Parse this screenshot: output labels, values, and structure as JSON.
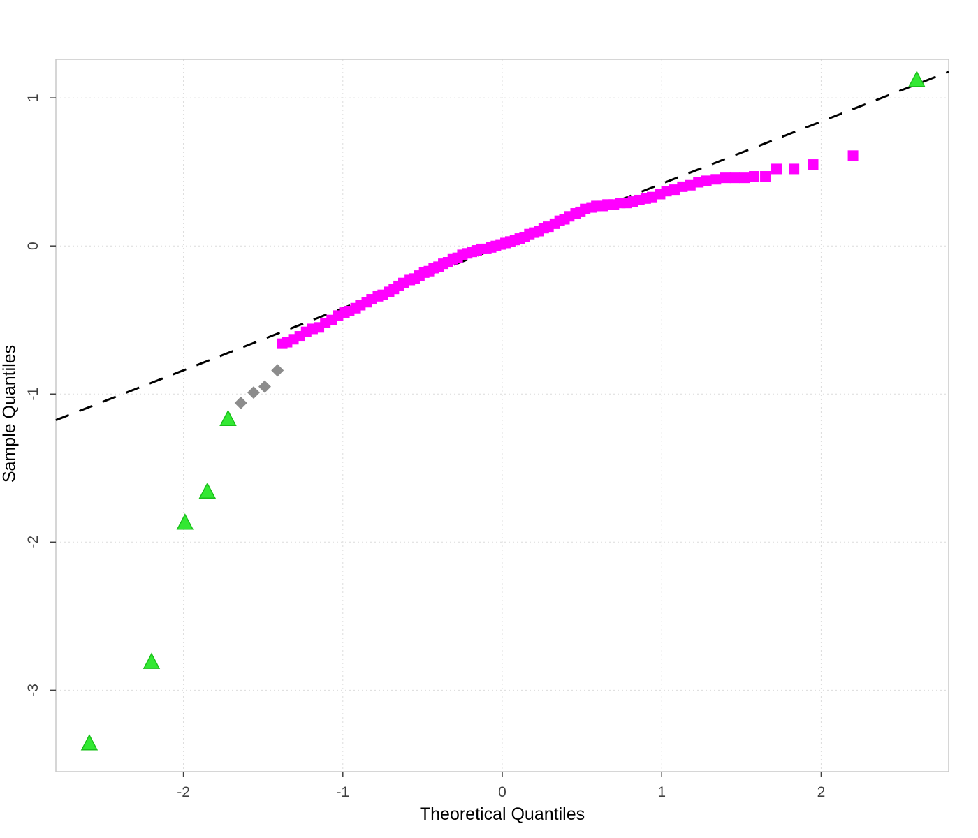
{
  "chart_data": {
    "type": "scatter",
    "title": "",
    "xlabel": "Theoretical Quantiles",
    "ylabel": "Sample Quantiles",
    "xlim": [
      -2.8,
      2.8
    ],
    "ylim": [
      -3.55,
      1.26
    ],
    "x_ticks": [
      -2,
      -1,
      0,
      1,
      2
    ],
    "y_ticks": [
      1,
      0,
      -1,
      -2,
      -3
    ],
    "grid": true,
    "grid_color": "#dcdcdc",
    "box_color": "#c8c8c8",
    "tick_label_color": "#404040",
    "reference_line": {
      "style": "dashed",
      "color": "#000000",
      "slope": 0.42,
      "intercept": 0.0
    },
    "series": [
      {
        "name": "main-sample",
        "marker": "square",
        "color": "#ff00ff",
        "points": [
          [
            -1.38,
            -0.66
          ],
          [
            -1.35,
            -0.65
          ],
          [
            -1.31,
            -0.63
          ],
          [
            -1.27,
            -0.61
          ],
          [
            -1.23,
            -0.58
          ],
          [
            -1.19,
            -0.56
          ],
          [
            -1.15,
            -0.55
          ],
          [
            -1.11,
            -0.52
          ],
          [
            -1.07,
            -0.5
          ],
          [
            -1.03,
            -0.47
          ],
          [
            -0.99,
            -0.45
          ],
          [
            -0.96,
            -0.44
          ],
          [
            -0.92,
            -0.42
          ],
          [
            -0.89,
            -0.4
          ],
          [
            -0.85,
            -0.38
          ],
          [
            -0.82,
            -0.36
          ],
          [
            -0.78,
            -0.34
          ],
          [
            -0.75,
            -0.33
          ],
          [
            -0.71,
            -0.31
          ],
          [
            -0.68,
            -0.29
          ],
          [
            -0.65,
            -0.27
          ],
          [
            -0.62,
            -0.25
          ],
          [
            -0.58,
            -0.23
          ],
          [
            -0.55,
            -0.22
          ],
          [
            -0.52,
            -0.2
          ],
          [
            -0.49,
            -0.18
          ],
          [
            -0.46,
            -0.17
          ],
          [
            -0.43,
            -0.15
          ],
          [
            -0.4,
            -0.14
          ],
          [
            -0.37,
            -0.12
          ],
          [
            -0.34,
            -0.11
          ],
          [
            -0.31,
            -0.09
          ],
          [
            -0.28,
            -0.08
          ],
          [
            -0.25,
            -0.06
          ],
          [
            -0.22,
            -0.05
          ],
          [
            -0.19,
            -0.04
          ],
          [
            -0.16,
            -0.03
          ],
          [
            -0.13,
            -0.02
          ],
          [
            -0.1,
            -0.02
          ],
          [
            -0.07,
            -0.01
          ],
          [
            -0.04,
            0.0
          ],
          [
            -0.01,
            0.01
          ],
          [
            0.02,
            0.02
          ],
          [
            0.05,
            0.03
          ],
          [
            0.08,
            0.04
          ],
          [
            0.11,
            0.05
          ],
          [
            0.14,
            0.06
          ],
          [
            0.17,
            0.08
          ],
          [
            0.2,
            0.09
          ],
          [
            0.23,
            0.1
          ],
          [
            0.26,
            0.12
          ],
          [
            0.29,
            0.13
          ],
          [
            0.33,
            0.15
          ],
          [
            0.36,
            0.17
          ],
          [
            0.39,
            0.18
          ],
          [
            0.42,
            0.2
          ],
          [
            0.46,
            0.22
          ],
          [
            0.49,
            0.23
          ],
          [
            0.52,
            0.25
          ],
          [
            0.56,
            0.26
          ],
          [
            0.59,
            0.27
          ],
          [
            0.63,
            0.27
          ],
          [
            0.66,
            0.28
          ],
          [
            0.7,
            0.28
          ],
          [
            0.74,
            0.29
          ],
          [
            0.78,
            0.29
          ],
          [
            0.82,
            0.3
          ],
          [
            0.86,
            0.31
          ],
          [
            0.9,
            0.32
          ],
          [
            0.94,
            0.33
          ],
          [
            0.99,
            0.35
          ],
          [
            1.03,
            0.37
          ],
          [
            1.08,
            0.38
          ],
          [
            1.13,
            0.4
          ],
          [
            1.18,
            0.41
          ],
          [
            1.23,
            0.43
          ],
          [
            1.28,
            0.44
          ],
          [
            1.34,
            0.45
          ],
          [
            1.4,
            0.46
          ],
          [
            1.46,
            0.46
          ],
          [
            1.52,
            0.46
          ],
          [
            1.58,
            0.47
          ],
          [
            1.65,
            0.47
          ],
          [
            1.72,
            0.52
          ],
          [
            1.83,
            0.52
          ],
          [
            1.95,
            0.55
          ],
          [
            2.2,
            0.61
          ]
        ]
      },
      {
        "name": "lower-transition",
        "marker": "diamond",
        "color": "#8c8c8c",
        "points": [
          [
            -1.64,
            -1.06
          ],
          [
            -1.56,
            -0.99
          ],
          [
            -1.49,
            -0.95
          ],
          [
            -1.41,
            -0.84
          ]
        ]
      },
      {
        "name": "tail-outliers",
        "marker": "triangle",
        "color": "#33e833",
        "stroke": "#19c019",
        "points": [
          [
            -2.59,
            -3.36
          ],
          [
            -2.2,
            -2.81
          ],
          [
            -1.99,
            -1.87
          ],
          [
            -1.85,
            -1.66
          ],
          [
            -1.72,
            -1.17
          ],
          [
            2.6,
            1.12
          ]
        ]
      }
    ]
  }
}
